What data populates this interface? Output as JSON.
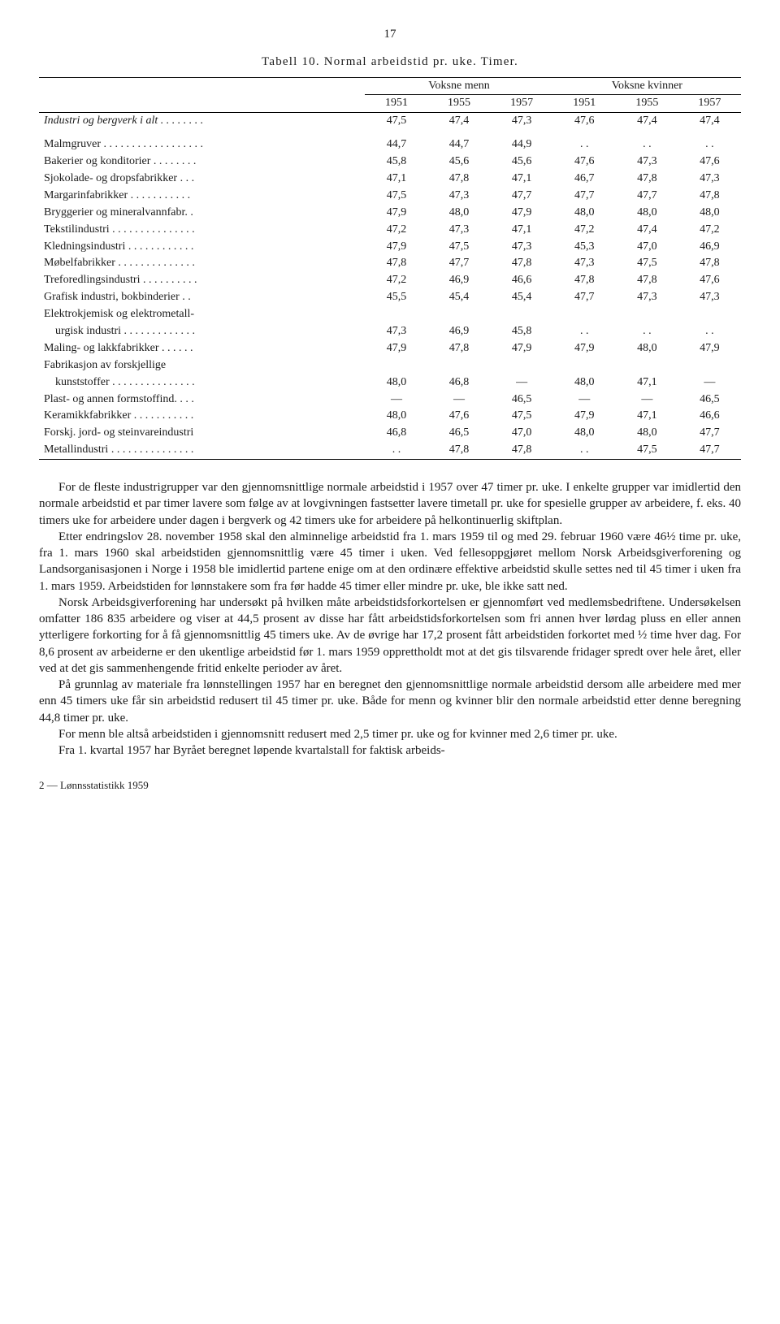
{
  "page_number": "17",
  "table": {
    "title": "Tabell 10. Normal arbeidstid pr. uke. Timer.",
    "group_headers": [
      "Voksne menn",
      "Voksne kvinner"
    ],
    "year_headers": [
      "1951",
      "1955",
      "1957",
      "1951",
      "1955",
      "1957"
    ],
    "rows": [
      {
        "label": "Industri og bergverk i alt . . . . . . . .",
        "italic": true,
        "cells": [
          "47,5",
          "47,4",
          "47,3",
          "47,6",
          "47,4",
          "47,4"
        ]
      },
      {
        "label": "Malmgruver . . . . . . . . . . . . . . . . . .",
        "cells": [
          "44,7",
          "44,7",
          "44,9",
          ". .",
          ". .",
          ". ."
        ]
      },
      {
        "label": "Bakerier og konditorier . . . . . . . .",
        "cells": [
          "45,8",
          "45,6",
          "45,6",
          "47,6",
          "47,3",
          "47,6"
        ]
      },
      {
        "label": "Sjokolade- og dropsfabrikker . . .",
        "cells": [
          "47,1",
          "47,8",
          "47,1",
          "46,7",
          "47,8",
          "47,3"
        ]
      },
      {
        "label": "Margarinfabrikker . . . . . . . . . . .",
        "cells": [
          "47,5",
          "47,3",
          "47,7",
          "47,7",
          "47,7",
          "47,8"
        ]
      },
      {
        "label": "Bryggerier og mineralvannfabr. .",
        "cells": [
          "47,9",
          "48,0",
          "47,9",
          "48,0",
          "48,0",
          "48,0"
        ]
      },
      {
        "label": "Tekstilindustri . . . . . . . . . . . . . . .",
        "cells": [
          "47,2",
          "47,3",
          "47,1",
          "47,2",
          "47,4",
          "47,2"
        ]
      },
      {
        "label": "Kledningsindustri . . . . . . . . . . . .",
        "cells": [
          "47,9",
          "47,5",
          "47,3",
          "45,3",
          "47,0",
          "46,9"
        ]
      },
      {
        "label": "Møbelfabrikker . . . . . . . . . . . . . .",
        "cells": [
          "47,8",
          "47,7",
          "47,8",
          "47,3",
          "47,5",
          "47,8"
        ]
      },
      {
        "label": "Treforedlingsindustri . . . . . . . . . .",
        "cells": [
          "47,2",
          "46,9",
          "46,6",
          "47,8",
          "47,8",
          "47,6"
        ]
      },
      {
        "label": "Grafisk industri, bokbinderier . .",
        "cells": [
          "45,5",
          "45,4",
          "45,4",
          "47,7",
          "47,3",
          "47,3"
        ]
      },
      {
        "label": "Elektrokjemisk og elektrometall-",
        "cells": [
          "",
          "",
          "",
          "",
          "",
          ""
        ]
      },
      {
        "label": "    urgisk industri . . . . . . . . . . . . .",
        "cells": [
          "47,3",
          "46,9",
          "45,8",
          ". .",
          ". .",
          ". ."
        ]
      },
      {
        "label": "Maling- og lakkfabrikker . . . . . .",
        "cells": [
          "47,9",
          "47,8",
          "47,9",
          "47,9",
          "48,0",
          "47,9"
        ]
      },
      {
        "label": "Fabrikasjon av forskjellige",
        "cells": [
          "",
          "",
          "",
          "",
          "",
          ""
        ]
      },
      {
        "label": "    kunststoffer . . . . . . . . . . . . . . .",
        "cells": [
          "48,0",
          "46,8",
          "—",
          "48,0",
          "47,1",
          "—"
        ]
      },
      {
        "label": "Plast- og annen formstoffind. . . .",
        "cells": [
          "—",
          "—",
          "46,5",
          "—",
          "—",
          "46,5"
        ]
      },
      {
        "label": "Keramikkfabrikker . . . . . . . . . . .",
        "cells": [
          "48,0",
          "47,6",
          "47,5",
          "47,9",
          "47,1",
          "46,6"
        ]
      },
      {
        "label": "Forskj. jord- og steinvareindustri",
        "cells": [
          "46,8",
          "46,5",
          "47,0",
          "48,0",
          "48,0",
          "47,7"
        ]
      },
      {
        "label": "Metallindustri . . . . . . . . . . . . . . .",
        "cells": [
          ". .",
          "47,8",
          "47,8",
          ". .",
          "47,5",
          "47,7"
        ]
      }
    ]
  },
  "body": {
    "p1": "For de fleste industrigrupper var den gjennomsnittlige normale arbeidstid i 1957 over 47 timer pr. uke. I enkelte grupper var imidlertid den normale arbeidstid et par timer lavere som følge av at lovgivningen fastsetter lavere timetall pr. uke for spesielle grupper av arbeidere, f. eks. 40 timers uke for arbeidere under dagen i bergverk og 42 timers uke for arbeidere på helkontinuerlig skiftplan.",
    "p2": "Etter endringslov 28. november 1958 skal den alminnelige arbeidstid fra 1. mars 1959 til og med 29. februar 1960 være 46½ time pr. uke, fra 1. mars 1960 skal arbeidstiden gjennomsnittlig være 45 timer i uken. Ved fellesoppgjøret mellom Norsk Arbeidsgiverforening og Landsorganisasjonen i Norge i 1958 ble imidlertid partene enige om at den ordinære effektive arbeidstid skulle settes ned til 45 timer i uken fra 1. mars 1959. Arbeidstiden for lønnstakere som fra før hadde 45 timer eller mindre pr. uke, ble ikke satt ned.",
    "p3": "Norsk Arbeidsgiverforening har undersøkt på hvilken måte arbeidstidsforkortelsen er gjennomført ved medlemsbedriftene. Undersøkelsen omfatter 186 835 arbeidere og viser at 44,5 prosent av disse har fått arbeidstidsforkortelsen som fri annen hver lørdag pluss en eller annen ytterligere forkorting for å få gjennomsnittlig 45 timers uke. Av de øvrige har 17,2 prosent fått arbeidstiden forkortet med ½ time hver dag. For 8,6 prosent av arbeiderne er den ukentlige arbeidstid før 1. mars 1959 opprettholdt mot at det gis tilsvarende fridager spredt over hele året, eller ved at det gis sammenhengende fritid enkelte perioder av året.",
    "p4": "På grunnlag av materiale fra lønnstellingen 1957 har en beregnet den gjennomsnittlige normale arbeidstid dersom alle arbeidere med mer enn 45 timers uke får sin arbeidstid redusert til 45 timer pr. uke. Både for menn og kvinner blir den normale arbeidstid etter denne beregning 44,8 timer pr. uke.",
    "p5": "For menn ble altså arbeidstiden i gjennomsnitt redusert med 2,5 timer pr. uke og for kvinner med 2,6 timer pr. uke.",
    "p6": "Fra 1. kvartal 1957 har Byrået beregnet løpende kvartalstall for faktisk arbeids-"
  },
  "footer": "2 — Lønnsstatistikk 1959"
}
